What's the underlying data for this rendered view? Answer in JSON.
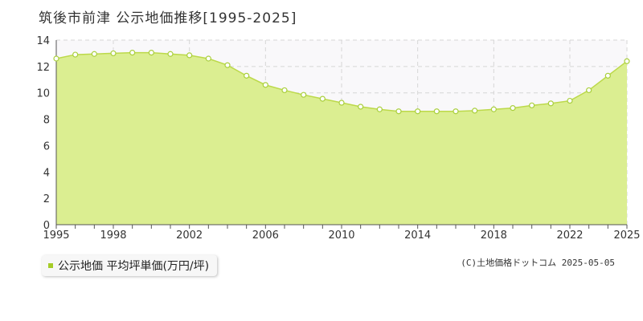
{
  "title": "筑後市前津 公示地価推移[1995-2025]",
  "legend_label": "公示地価 平均坪単価(万円/坪)",
  "credit": "(C)土地価格ドットコム 2025-05-05",
  "colors": {
    "fill": "#dbee91",
    "line": "#bcd94a",
    "marker_fill": "#ffffff",
    "marker_stroke": "#a9cf3c",
    "grid": "#d6d6d6",
    "legend_swatch": "#a5cc28"
  },
  "chart_data": {
    "type": "area",
    "title": "筑後市前津 公示地価推移[1995-2025]",
    "xlabel": "",
    "ylabel": "",
    "xlim": [
      1995,
      2025
    ],
    "ylim": [
      0,
      14
    ],
    "yticks": [
      0,
      2,
      4,
      6,
      8,
      10,
      12,
      14
    ],
    "xticks": [
      1995,
      1998,
      2002,
      2006,
      2010,
      2014,
      2018,
      2022,
      2025
    ],
    "grid": true,
    "legend_position": "bottom-left",
    "series": [
      {
        "name": "公示地価 平均坪単価(万円/坪)",
        "x": [
          1995,
          1996,
          1997,
          1998,
          1999,
          2000,
          2001,
          2002,
          2003,
          2004,
          2005,
          2006,
          2007,
          2008,
          2009,
          2010,
          2011,
          2012,
          2013,
          2014,
          2015,
          2016,
          2017,
          2018,
          2019,
          2020,
          2021,
          2022,
          2023,
          2024,
          2025
        ],
        "values": [
          12.6,
          12.9,
          12.95,
          13.0,
          13.05,
          13.05,
          12.95,
          12.85,
          12.6,
          12.1,
          11.3,
          10.6,
          10.2,
          9.85,
          9.55,
          9.25,
          8.95,
          8.75,
          8.6,
          8.6,
          8.6,
          8.6,
          8.65,
          8.75,
          8.85,
          9.05,
          9.2,
          9.4,
          10.2,
          11.3,
          12.4
        ]
      }
    ]
  }
}
